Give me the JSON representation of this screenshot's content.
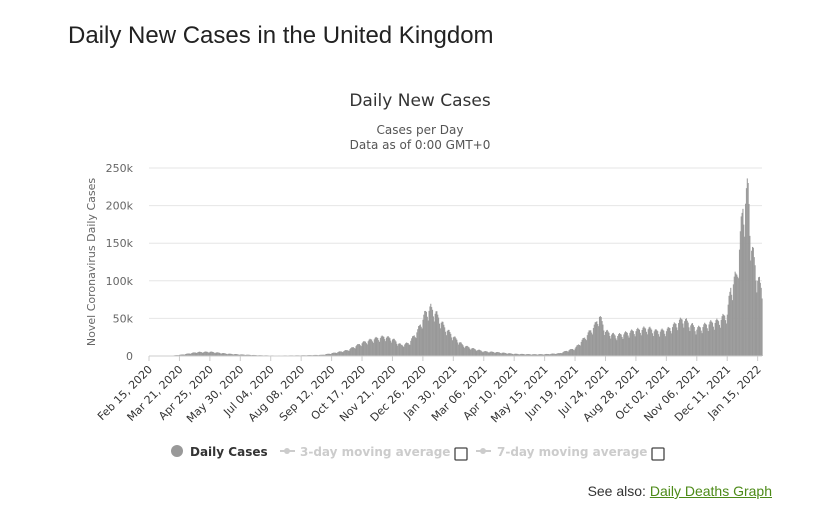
{
  "page": {
    "title": "Daily New Cases in the United Kingdom",
    "see_also_label": "See also:",
    "see_also_link": "Daily Deaths Graph"
  },
  "chart_data": {
    "type": "bar",
    "title": "Daily New Cases",
    "subtitle_lines": [
      "Cases per Day",
      "Data as of 0:00 GMT+0"
    ],
    "xlabel": "",
    "ylabel": "Novel Coronavirus Daily Cases",
    "ylim": [
      0,
      250000
    ],
    "yticks": [
      0,
      50000,
      100000,
      150000,
      200000,
      250000
    ],
    "ytick_labels": [
      "0",
      "50k",
      "100k",
      "150k",
      "200k",
      "250k"
    ],
    "x_start": "2020-02-15",
    "x_end": "2022-01-20",
    "xtick_labels": [
      "Feb 15, 2020",
      "Mar 21, 2020",
      "Apr 25, 2020",
      "May 30, 2020",
      "Jul 04, 2020",
      "Aug 08, 2020",
      "Sep 12, 2020",
      "Oct 17, 2020",
      "Nov 21, 2020",
      "Dec 26, 2020",
      "Jan 30, 2021",
      "Mar 06, 2021",
      "Apr 10, 2021",
      "May 15, 2021",
      "Jun 19, 2021",
      "Jul 24, 2021",
      "Aug 28, 2021",
      "Oct 02, 2021",
      "Nov 06, 2021",
      "Dec 11, 2021",
      "Jan 15, 2022"
    ],
    "grid": true,
    "bar_color": "#999999",
    "series": [
      {
        "name": "Daily Cases",
        "anchors": [
          [
            "2020-02-15",
            0
          ],
          [
            "2020-03-10",
            200
          ],
          [
            "2020-03-25",
            2000
          ],
          [
            "2020-04-10",
            5000
          ],
          [
            "2020-04-25",
            5500
          ],
          [
            "2020-05-15",
            3000
          ],
          [
            "2020-05-30",
            2000
          ],
          [
            "2020-06-20",
            1000
          ],
          [
            "2020-07-10",
            600
          ],
          [
            "2020-08-08",
            900
          ],
          [
            "2020-09-01",
            1500
          ],
          [
            "2020-09-12",
            3500
          ],
          [
            "2020-09-30",
            7500
          ],
          [
            "2020-10-17",
            17000
          ],
          [
            "2020-10-30",
            22000
          ],
          [
            "2020-11-12",
            25000
          ],
          [
            "2020-11-21",
            22000
          ],
          [
            "2020-12-01",
            14000
          ],
          [
            "2020-12-10",
            17000
          ],
          [
            "2020-12-20",
            33000
          ],
          [
            "2020-12-29",
            56000
          ],
          [
            "2021-01-04",
            62000
          ],
          [
            "2021-01-10",
            55000
          ],
          [
            "2021-01-20",
            37000
          ],
          [
            "2021-01-30",
            25000
          ],
          [
            "2021-02-10",
            14000
          ],
          [
            "2021-02-20",
            10000
          ],
          [
            "2021-03-06",
            6000
          ],
          [
            "2021-03-20",
            5000
          ],
          [
            "2021-04-10",
            2800
          ],
          [
            "2021-05-01",
            2200
          ],
          [
            "2021-05-15",
            2300
          ],
          [
            "2021-06-01",
            3500
          ],
          [
            "2021-06-10",
            7000
          ],
          [
            "2021-06-19",
            10000
          ],
          [
            "2021-07-01",
            25000
          ],
          [
            "2021-07-12",
            40000
          ],
          [
            "2021-07-17",
            52000
          ],
          [
            "2021-07-24",
            32000
          ],
          [
            "2021-08-05",
            26000
          ],
          [
            "2021-08-28",
            33000
          ],
          [
            "2021-09-10",
            36000
          ],
          [
            "2021-09-20",
            32000
          ],
          [
            "2021-10-02",
            33000
          ],
          [
            "2021-10-15",
            43000
          ],
          [
            "2021-10-21",
            48000
          ],
          [
            "2021-11-06",
            35000
          ],
          [
            "2021-11-20",
            42000
          ],
          [
            "2021-12-01",
            45000
          ],
          [
            "2021-12-11",
            55000
          ],
          [
            "2021-12-15",
            88000
          ],
          [
            "2021-12-22",
            105000
          ],
          [
            "2021-12-29",
            190000
          ],
          [
            "2022-01-04",
            215000
          ],
          [
            "2022-01-08",
            140000
          ],
          [
            "2022-01-15",
            100000
          ],
          [
            "2022-01-20",
            85000
          ]
        ]
      }
    ],
    "legend": {
      "placement": "bottom",
      "items": [
        {
          "label": "Daily Cases",
          "active": true
        },
        {
          "label": "3-day moving average",
          "active": false
        },
        {
          "label": "7-day moving average",
          "active": false
        }
      ]
    }
  }
}
